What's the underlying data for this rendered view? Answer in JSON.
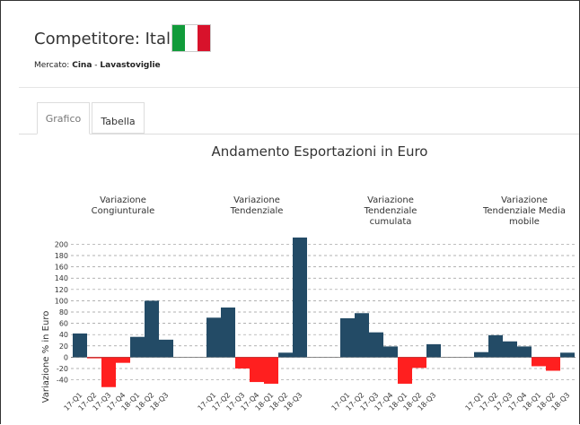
{
  "header": {
    "title": "Competitore: Italia",
    "market_label": "Mercato:",
    "market": "Cina",
    "separator": "-",
    "segment": "Lavastoviglie"
  },
  "tabs": [
    "Grafico",
    "Tabella"
  ],
  "chart_data": {
    "type": "bar",
    "title": "Andamento Esportazioni in Euro",
    "ylabel": "Variazione % in Euro",
    "ylim": [
      -55,
      215
    ],
    "yticks": [
      -40,
      -20,
      0,
      20,
      40,
      60,
      80,
      100,
      120,
      140,
      160,
      180,
      200
    ],
    "color": "#234b66",
    "negative_color": "#ff1f1f",
    "grid": true,
    "panels": [
      {
        "title": [
          "Variazione",
          "Congiunturale"
        ],
        "categories": [
          "17-Q1",
          "17-Q2",
          "17-Q3",
          "17-Q4",
          "18-Q1",
          "18-Q2",
          "18-Q3"
        ],
        "values": [
          42,
          -2,
          -53,
          -10,
          36,
          100,
          31
        ]
      },
      {
        "title": [
          "Variazione",
          "Tendenziale"
        ],
        "categories": [
          "17-Q1",
          "17-Q2",
          "17-Q3",
          "17-Q4",
          "18-Q1",
          "18-Q2",
          "18-Q3"
        ],
        "values": [
          70,
          88,
          -20,
          -44,
          -47,
          8,
          212
        ]
      },
      {
        "title": [
          "Variazione",
          "Tendenziale",
          "cumulata"
        ],
        "categories": [
          "17-Q1",
          "17-Q2",
          "17-Q3",
          "17-Q4",
          "18-Q1",
          "18-Q2",
          "18-Q3"
        ],
        "values": [
          69,
          78,
          44,
          19,
          -47,
          -19,
          23
        ]
      },
      {
        "title": [
          "Variazione",
          "Tendenziale Media",
          "mobile"
        ],
        "categories": [
          "17-Q1",
          "17-Q2",
          "17-Q3",
          "17-Q4",
          "18-Q1",
          "18-Q2",
          "18-Q3"
        ],
        "values": [
          9,
          39,
          28,
          19,
          -16,
          -24,
          8
        ]
      }
    ]
  }
}
